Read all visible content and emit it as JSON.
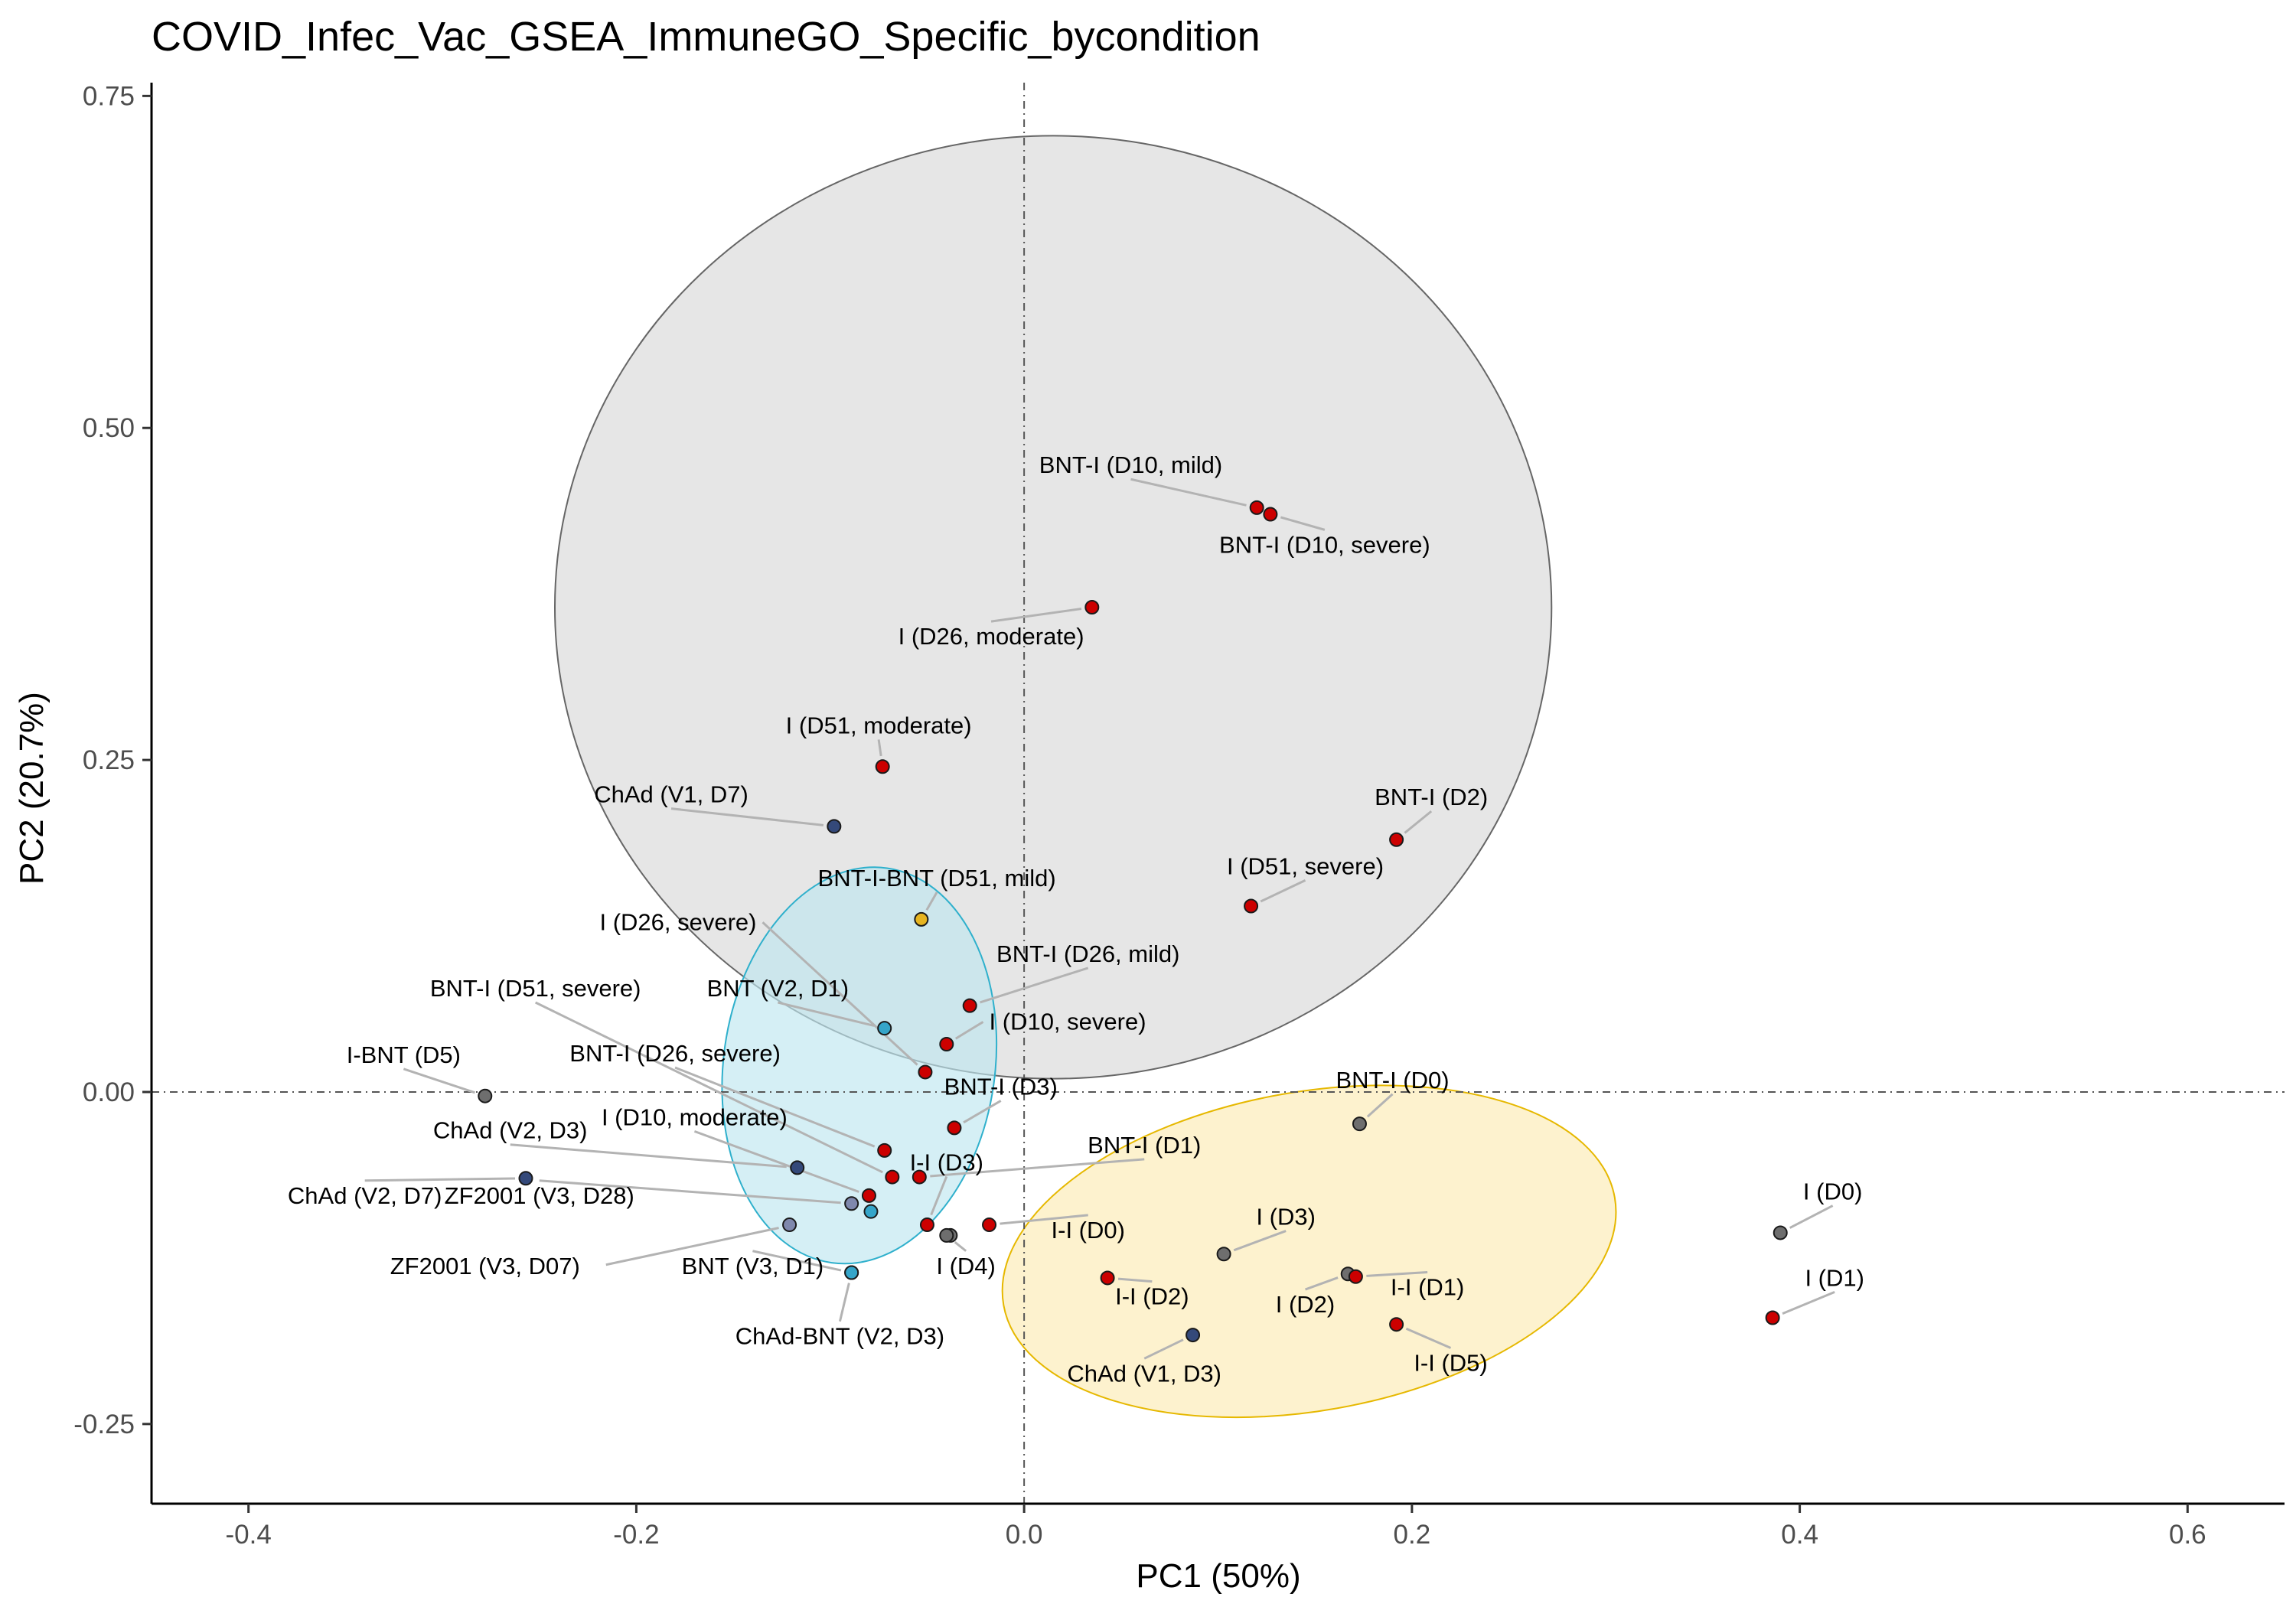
{
  "chart_data": {
    "type": "scatter",
    "title": "COVID_Infec_Vac_GSEA_ImmuneGO_Specific_bycondition",
    "xlabel": "PC1 (50%)",
    "ylabel": "PC2 (20.7%)",
    "xlim": [
      -0.45,
      0.65
    ],
    "ylim": [
      -0.31,
      0.76
    ],
    "xticks": [
      -0.4,
      -0.2,
      0.0,
      0.2,
      0.4,
      0.6
    ],
    "xtick_labels": [
      "-0.4",
      "-0.2",
      "0.0",
      "0.2",
      "0.4",
      "0.6"
    ],
    "yticks": [
      -0.25,
      0.0,
      0.25,
      0.5,
      0.75
    ],
    "ytick_labels": [
      "-0.25",
      "0.00",
      "0.25",
      "0.50",
      "0.75"
    ],
    "grid": false,
    "reference_lines": {
      "x": 0,
      "y": 0,
      "style": "dash-dot"
    },
    "colors": {
      "infection": "#cc0000",
      "control": "#6e6e6e",
      "chad": "#34497a",
      "chad_light": "#7f88ad",
      "bnt": "#35a5c9",
      "bnt_i_bnt": "#e6b420",
      "ellipse_grey_fill": "#d9d9d9",
      "ellipse_grey_stroke": "#666666",
      "ellipse_cyan_fill": "#bfe6f0",
      "ellipse_cyan_stroke": "#2fb0cc",
      "ellipse_yellow_fill": "#fcebb3",
      "ellipse_yellow_stroke": "#e6b800"
    },
    "ellipses": [
      {
        "name": "grey",
        "cx": 0.015,
        "cy": 0.365,
        "rx": 0.257,
        "ry": 0.355,
        "fill": "#d9d9d9",
        "stroke": "#666666"
      },
      {
        "name": "cyan",
        "cx": -0.085,
        "cy": 0.02,
        "rx": 0.07,
        "ry": 0.15,
        "rot": 8,
        "fill": "#bfe6f0",
        "stroke": "#2fb0cc"
      },
      {
        "name": "yellow",
        "cx": 0.147,
        "cy": -0.12,
        "rx": 0.16,
        "ry": 0.12,
        "rot": -10,
        "fill": "#fcebb3",
        "stroke": "#e6b800"
      }
    ],
    "points": [
      {
        "label": "BNT-I (D10, mild)",
        "x": 0.12,
        "y": 0.44,
        "color": "#cc0000",
        "lx": 0.055,
        "ly": 0.466,
        "anchor": "middle"
      },
      {
        "label": "BNT-I (D10, severe)",
        "x": 0.127,
        "y": 0.435,
        "color": "#cc0000",
        "lx": 0.155,
        "ly": 0.406,
        "anchor": "middle"
      },
      {
        "label": "I (D26, moderate)",
        "x": 0.035,
        "y": 0.365,
        "color": "#cc0000",
        "lx": -0.017,
        "ly": 0.337,
        "anchor": "middle"
      },
      {
        "label": "I (D51, moderate)",
        "x": -0.073,
        "y": 0.245,
        "color": "#cc0000",
        "lx": -0.075,
        "ly": 0.27,
        "anchor": "middle"
      },
      {
        "label": "ChAd (V1, D7)",
        "x": -0.098,
        "y": 0.2,
        "color": "#34497a",
        "lx": -0.182,
        "ly": 0.218,
        "anchor": "middle"
      },
      {
        "label": "BNT-I (D2)",
        "x": 0.192,
        "y": 0.19,
        "color": "#cc0000",
        "lx": 0.21,
        "ly": 0.216,
        "anchor": "middle"
      },
      {
        "label": "I (D51, severe)",
        "x": 0.117,
        "y": 0.14,
        "color": "#cc0000",
        "lx": 0.145,
        "ly": 0.164,
        "anchor": "middle"
      },
      {
        "label": "BNT-I-BNT (D51, mild)",
        "x": -0.053,
        "y": 0.13,
        "color": "#e6b420",
        "lx": -0.045,
        "ly": 0.155,
        "anchor": "middle"
      },
      {
        "label": "I (D26, severe)",
        "x": -0.051,
        "y": 0.015,
        "color": "#cc0000",
        "lx": -0.138,
        "ly": 0.122,
        "anchor": "end"
      },
      {
        "label": "BNT-I (D26, mild)",
        "x": -0.028,
        "y": 0.065,
        "color": "#cc0000",
        "lx": 0.033,
        "ly": 0.098,
        "anchor": "middle"
      },
      {
        "label": "BNT (V2, D1)",
        "x": -0.072,
        "y": 0.048,
        "color": "#35a5c9",
        "lx": -0.127,
        "ly": 0.072,
        "anchor": "middle"
      },
      {
        "label": "BNT-I (D51, severe)",
        "x": -0.068,
        "y": -0.064,
        "color": "#cc0000",
        "lx": -0.252,
        "ly": 0.072,
        "anchor": "middle"
      },
      {
        "label": "I (D10, severe)",
        "x": -0.04,
        "y": 0.036,
        "color": "#cc0000",
        "lx": -0.018,
        "ly": 0.047,
        "anchor": "start"
      },
      {
        "label": "I-BNT (D5)",
        "x": -0.278,
        "y": -0.003,
        "color": "#6e6e6e",
        "lx": -0.32,
        "ly": 0.022,
        "anchor": "middle"
      },
      {
        "label": "BNT-I (D26, severe)",
        "x": -0.072,
        "y": -0.044,
        "color": "#cc0000",
        "lx": -0.18,
        "ly": 0.023,
        "anchor": "middle"
      },
      {
        "label": "BNT-I (D0)",
        "x": 0.173,
        "y": -0.024,
        "color": "#6e6e6e",
        "lx": 0.19,
        "ly": 0.003,
        "anchor": "middle"
      },
      {
        "label": "BNT-I (D3)",
        "x": -0.036,
        "y": -0.027,
        "color": "#cc0000",
        "lx": -0.012,
        "ly": -0.002,
        "anchor": "middle"
      },
      {
        "label": "I (D10, moderate)",
        "x": -0.08,
        "y": -0.078,
        "color": "#cc0000",
        "lx": -0.17,
        "ly": -0.025,
        "anchor": "middle"
      },
      {
        "label": "ChAd (V2, D3)",
        "x": -0.117,
        "y": -0.057,
        "color": "#34497a",
        "lx": -0.265,
        "ly": -0.035,
        "anchor": "middle"
      },
      {
        "label": "BNT-I (D1)",
        "x": -0.054,
        "y": -0.064,
        "color": "#cc0000",
        "lx": 0.062,
        "ly": -0.046,
        "anchor": "middle"
      },
      {
        "label": "I-I (D3)",
        "x": -0.05,
        "y": -0.1,
        "color": "#cc0000",
        "lx": -0.04,
        "ly": -0.059,
        "anchor": "middle"
      },
      {
        "label": "ChAd (V2, D7)",
        "x": -0.257,
        "y": -0.065,
        "color": "#34497a",
        "lx": -0.34,
        "ly": -0.084,
        "anchor": "middle"
      },
      {
        "label": "ZF2001 (V3, D28)",
        "x": -0.089,
        "y": -0.084,
        "color": "#7f88ad",
        "lx": -0.25,
        "ly": -0.084,
        "anchor": "middle"
      },
      {
        "label": "",
        "x": -0.079,
        "y": -0.09,
        "color": "#35a5c9"
      },
      {
        "label": "",
        "x": -0.121,
        "y": -0.1,
        "color": "#7f88ad"
      },
      {
        "label": "",
        "x": -0.038,
        "y": -0.108,
        "color": "#6e6e6e"
      },
      {
        "label": "I-I (D0)",
        "x": -0.018,
        "y": -0.1,
        "color": "#cc0000",
        "lx": 0.033,
        "ly": -0.11,
        "anchor": "middle"
      },
      {
        "label": "I (D3)",
        "x": 0.103,
        "y": -0.122,
        "color": "#6e6e6e",
        "lx": 0.135,
        "ly": -0.1,
        "anchor": "middle"
      },
      {
        "label": "I (D0)",
        "x": 0.39,
        "y": -0.106,
        "color": "#6e6e6e",
        "lx": 0.417,
        "ly": -0.081,
        "anchor": "middle"
      },
      {
        "label": "ZF2001 (V3, D07)",
        "x": -0.13,
        "y": -0.137,
        "color": "#35a5c9",
        "hidden": true
      },
      {
        "label": "BNT (V3, D1)",
        "x": -0.089,
        "y": -0.136,
        "color": "#35a5c9",
        "lx": -0.14,
        "ly": -0.137,
        "anchor": "middle"
      },
      {
        "label": "I (D4)",
        "x": -0.04,
        "y": -0.108,
        "color": "#6e6e6e",
        "lx": -0.03,
        "ly": -0.137,
        "anchor": "middle"
      },
      {
        "label": "I-I (D2)",
        "x": 0.043,
        "y": -0.14,
        "color": "#cc0000",
        "lx": 0.066,
        "ly": -0.16,
        "anchor": "middle"
      },
      {
        "label": "I (D2)",
        "x": 0.167,
        "y": -0.137,
        "color": "#6e6e6e",
        "lx": 0.145,
        "ly": -0.166,
        "anchor": "middle"
      },
      {
        "label": "I-I (D1)",
        "x": 0.171,
        "y": -0.139,
        "color": "#cc0000",
        "lx": 0.208,
        "ly": -0.153,
        "anchor": "middle"
      },
      {
        "label": "I (D1)",
        "x": 0.386,
        "y": -0.17,
        "color": "#cc0000",
        "lx": 0.418,
        "ly": -0.146,
        "anchor": "middle"
      },
      {
        "label": "ChAd-BNT (V2, D3)",
        "x": -0.089,
        "y": -0.136,
        "color": "#35a5c9",
        "lx": -0.095,
        "ly": -0.19,
        "anchor": "middle"
      },
      {
        "label": "I-I (D5)",
        "x": 0.192,
        "y": -0.175,
        "color": "#cc0000",
        "lx": 0.22,
        "ly": -0.21,
        "anchor": "middle"
      },
      {
        "label": "ChAd (V1, D3)",
        "x": 0.087,
        "y": -0.183,
        "color": "#34497a",
        "lx": 0.062,
        "ly": -0.218,
        "anchor": "middle"
      }
    ]
  }
}
